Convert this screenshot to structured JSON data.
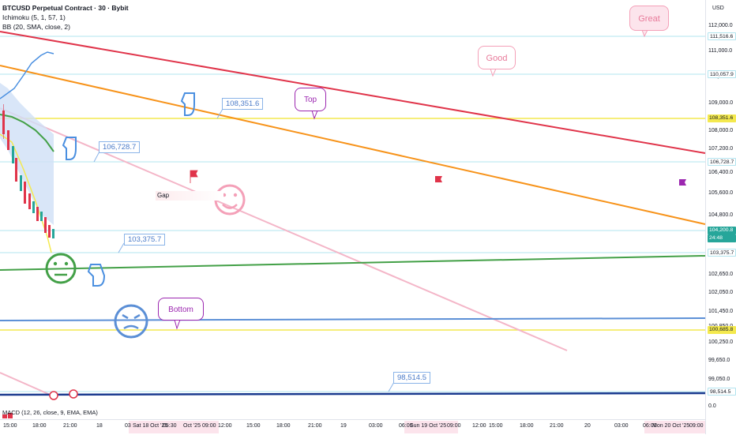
{
  "legend": {
    "title": "BTCUSD Perpetual Contract · 30 · Bybit",
    "ichimoku": "Ichimoku (5, 1, 57, 1)",
    "bb": "BB (20, SMA, close, 2)"
  },
  "axis": {
    "unit": "USD",
    "ticks": [
      "112,000.0",
      "111,000.0",
      "110,000.0",
      "109,000.0",
      "108,000.0",
      "107,200.0",
      "106,400.0",
      "105,600.0",
      "104,800.0",
      "103,950.0",
      "102,650.0",
      "102,050.0",
      "101,450.0",
      "100,850.0",
      "100,250.0",
      "99,650.0",
      "99,050.0",
      "0.0"
    ],
    "tags": {
      "p111516": "111,516.6",
      "p110057": "110,057.9",
      "p108351": "108,351.6",
      "p106728": "106,728.7",
      "current": "104,200.8",
      "countdown": "24:48",
      "p103375": "103,375.7",
      "p100685": "100,685.8",
      "p98514": "98,514.5"
    }
  },
  "time_axis": {
    "labels": [
      "15:00",
      "18:00",
      "21:00",
      "18",
      "03",
      "Sat 18 Oct '25",
      "05:30",
      "Oct '25",
      "09:00",
      "12:00",
      "15:00",
      "18:00",
      "21:00",
      "19",
      "03:00",
      "06:00",
      "Sun 19 Oct '25",
      "09:00",
      "12:00",
      "15:00",
      "18:00",
      "21:00",
      "20",
      "03:00",
      "06:00",
      "Mon 20 Oct '25",
      "09:00"
    ]
  },
  "annotations": {
    "great": "Great",
    "good": "Good",
    "top": "Top",
    "bottom": "Bottom",
    "gap": "Gap",
    "c108351": "108,351.6",
    "c106728": "106,728.7",
    "c103375": "103,375.7",
    "c98514": "98,514.5"
  },
  "macd": "MACD (12, 26, close, 9, EMA, EMA)",
  "colors": {
    "red_trend": "#e0344a",
    "orange_trend": "#f7931a",
    "pink_trend": "#f4b6c8",
    "green_line": "#43a047",
    "blue_line": "#5b8fd6",
    "navy_line": "#1a3a8f",
    "yellow_line": "#f4e94e",
    "cyan_line": "#b2e4ef",
    "current_price": "#26a69a"
  }
}
